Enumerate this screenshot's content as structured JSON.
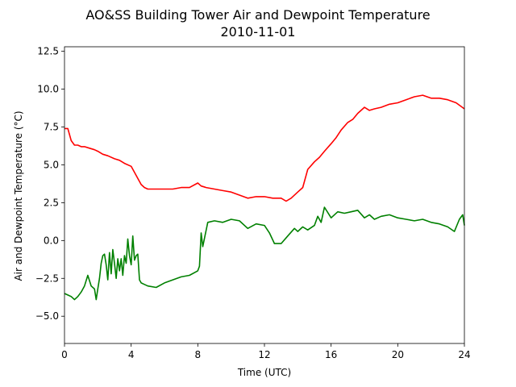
{
  "chart_data": {
    "type": "line",
    "title": "AO&SS Building Tower Air and Dewpoint Temperature",
    "subtitle": "2010-11-01",
    "xlabel": "Time (UTC)",
    "ylabel": "Air and Dewpoint Temperature (°C)",
    "xlim": [
      0,
      24
    ],
    "ylim": [
      -6.8,
      12.8
    ],
    "xticks": [
      0,
      4,
      8,
      12,
      16,
      20,
      24
    ],
    "yticks": [
      -5.0,
      -2.5,
      0.0,
      2.5,
      5.0,
      7.5,
      10.0,
      12.5
    ],
    "ytick_labels": [
      "−5.0",
      "−2.5",
      "0.0",
      "2.5",
      "5.0",
      "7.5",
      "10.0",
      "12.5"
    ],
    "grid": false,
    "series": [
      {
        "color": "#ff0000",
        "x": [
          0.0,
          0.2,
          0.4,
          0.6,
          0.8,
          1.0,
          1.2,
          1.5,
          1.8,
          2.0,
          2.3,
          2.6,
          3.0,
          3.3,
          3.6,
          4.0,
          4.2,
          4.4,
          4.6,
          4.8,
          5.0,
          5.5,
          6.0,
          6.5,
          7.0,
          7.5,
          8.0,
          8.2,
          8.5,
          9.0,
          9.5,
          10.0,
          10.5,
          11.0,
          11.5,
          12.0,
          12.5,
          13.0,
          13.3,
          13.6,
          14.0,
          14.3,
          14.6,
          15.0,
          15.3,
          15.6,
          16.0,
          16.3,
          16.6,
          17.0,
          17.3,
          17.6,
          18.0,
          18.3,
          18.6,
          19.0,
          19.5,
          20.0,
          20.5,
          21.0,
          21.5,
          22.0,
          22.5,
          23.0,
          23.5,
          24.0
        ],
        "values": [
          7.4,
          7.4,
          6.6,
          6.3,
          6.3,
          6.2,
          6.2,
          6.1,
          6.0,
          5.9,
          5.7,
          5.6,
          5.4,
          5.3,
          5.1,
          4.9,
          4.5,
          4.1,
          3.7,
          3.5,
          3.4,
          3.4,
          3.4,
          3.4,
          3.5,
          3.5,
          3.8,
          3.6,
          3.5,
          3.4,
          3.3,
          3.2,
          3.0,
          2.8,
          2.9,
          2.9,
          2.8,
          2.8,
          2.6,
          2.8,
          3.2,
          3.5,
          4.7,
          5.2,
          5.5,
          5.9,
          6.4,
          6.8,
          7.3,
          7.8,
          8.0,
          8.4,
          8.8,
          8.6,
          8.7,
          8.8,
          9.0,
          9.1,
          9.3,
          9.5,
          9.6,
          9.4,
          9.4,
          9.3,
          9.1,
          8.7
        ]
      },
      {
        "color": "#008000",
        "x": [
          0.0,
          0.2,
          0.4,
          0.6,
          0.8,
          1.0,
          1.2,
          1.4,
          1.6,
          1.8,
          1.9,
          2.0,
          2.1,
          2.2,
          2.3,
          2.4,
          2.5,
          2.6,
          2.7,
          2.8,
          2.9,
          3.0,
          3.1,
          3.2,
          3.3,
          3.4,
          3.5,
          3.6,
          3.7,
          3.8,
          3.9,
          4.0,
          4.1,
          4.2,
          4.3,
          4.4,
          4.5,
          4.6,
          4.8,
          5.0,
          5.5,
          6.0,
          6.5,
          7.0,
          7.5,
          8.0,
          8.1,
          8.2,
          8.3,
          8.6,
          9.0,
          9.5,
          10.0,
          10.5,
          11.0,
          11.5,
          12.0,
          12.3,
          12.6,
          13.0,
          13.4,
          13.8,
          14.0,
          14.3,
          14.6,
          15.0,
          15.2,
          15.4,
          15.6,
          16.0,
          16.4,
          16.8,
          17.2,
          17.6,
          18.0,
          18.3,
          18.6,
          19.0,
          19.5,
          20.0,
          20.5,
          21.0,
          21.5,
          22.0,
          22.5,
          23.0,
          23.4,
          23.7,
          23.9,
          24.0
        ],
        "values": [
          -3.5,
          -3.6,
          -3.7,
          -3.9,
          -3.7,
          -3.4,
          -3.0,
          -2.3,
          -3.0,
          -3.2,
          -3.9,
          -3.2,
          -2.5,
          -1.5,
          -1.0,
          -0.9,
          -1.6,
          -2.6,
          -0.8,
          -2.2,
          -0.6,
          -1.5,
          -2.5,
          -1.2,
          -2.0,
          -1.2,
          -2.3,
          -1.0,
          -1.5,
          0.1,
          -1.0,
          -1.6,
          0.3,
          -1.3,
          -1.0,
          -0.9,
          -2.6,
          -2.8,
          -2.9,
          -3.0,
          -3.1,
          -2.8,
          -2.6,
          -2.4,
          -2.3,
          -2.0,
          -1.7,
          0.5,
          -0.4,
          1.2,
          1.3,
          1.2,
          1.4,
          1.3,
          0.8,
          1.1,
          1.0,
          0.5,
          -0.2,
          -0.2,
          0.3,
          0.8,
          0.6,
          0.9,
          0.7,
          1.0,
          1.6,
          1.2,
          2.2,
          1.5,
          1.9,
          1.8,
          1.9,
          2.0,
          1.5,
          1.7,
          1.4,
          1.6,
          1.7,
          1.5,
          1.4,
          1.3,
          1.4,
          1.2,
          1.1,
          0.9,
          0.6,
          1.4,
          1.7,
          1.0
        ]
      }
    ]
  }
}
